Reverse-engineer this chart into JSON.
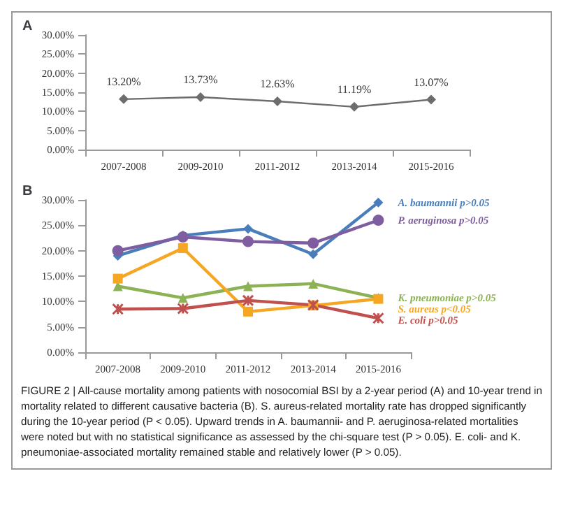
{
  "chart_data": [
    {
      "type": "line",
      "title": "A",
      "categories": [
        "2007-2008",
        "2009-2010",
        "2011-2012",
        "2013-2014",
        "2015-2016"
      ],
      "series": [
        {
          "color": "#6d6d6d",
          "values": [
            13.2,
            13.73,
            12.63,
            11.19,
            13.07
          ],
          "value_labels": [
            "13.20%",
            "13.73%",
            "12.63%",
            "11.19%",
            "13.07%"
          ]
        }
      ],
      "ylim": [
        0,
        30
      ],
      "yticks": [
        {
          "value": 0,
          "label": "0.00%"
        },
        {
          "value": 5,
          "label": "5.00%"
        },
        {
          "value": 10,
          "label": "10.00%"
        },
        {
          "value": 15,
          "label": "15.00%"
        },
        {
          "value": 20,
          "label": "20.00%"
        },
        {
          "value": 25,
          "label": "25.00%"
        },
        {
          "value": 30,
          "label": "30.00%"
        }
      ],
      "marker": "diamond",
      "grid": false,
      "legend": false
    },
    {
      "type": "line",
      "title": "B",
      "categories": [
        "2007-2008",
        "2009-2010",
        "2011-2012",
        "2013-2014",
        "2015-2016"
      ],
      "series": [
        {
          "name": "A. baumannii p>0.05",
          "color": "#4a7ebb",
          "marker": "diamond",
          "values": [
            19,
            23,
            24.3,
            19.3,
            29.5
          ]
        },
        {
          "name": "P. aeruginosa p>0.05",
          "color": "#7e5ea0",
          "marker": "circle",
          "values": [
            20,
            22.7,
            21.8,
            21.5,
            26
          ]
        },
        {
          "name": "K. pneumoniae p>0.05",
          "color": "#8db255",
          "marker": "triangle",
          "values": [
            13,
            10.7,
            13,
            13.5,
            10.7
          ]
        },
        {
          "name": "S. aureus p<0.05",
          "color": "#f5a623",
          "marker": "square",
          "values": [
            14.5,
            20.5,
            8,
            9.2,
            10.5
          ]
        },
        {
          "name": "E. coli p>0.05",
          "color": "#c0504d",
          "marker": "cross",
          "values": [
            8.5,
            8.6,
            10.2,
            9.3,
            6.7
          ]
        }
      ],
      "ylim": [
        0,
        30
      ],
      "yticks": [
        {
          "value": 0,
          "label": "0.00%"
        },
        {
          "value": 5,
          "label": "5.00%"
        },
        {
          "value": 10,
          "label": "10.00%"
        },
        {
          "value": 15,
          "label": "15.00%"
        },
        {
          "value": 20,
          "label": "20.00%"
        },
        {
          "value": 25,
          "label": "25.00%"
        },
        {
          "value": 30,
          "label": "30.00%"
        }
      ],
      "grid": false,
      "legend": false,
      "annotations": [
        "FIGURE 2 | All-cause mortality among patients with nosocomial BSI by a 2-year period (A) and 10-year trend in mortality related to different causative bacteria (B). S. aureus-related mortality rate has dropped significantly during the 10-year period (P < 0.05). Upward trends in A. baumannii- and P. aeruginosa-related mortalities were noted but with no statistical significance as assessed by the chi-square test (P > 0.05). E. coli- and K. pneumoniae-associated mortality remained stable and relatively lower (P > 0.05)."
      ]
    }
  ]
}
